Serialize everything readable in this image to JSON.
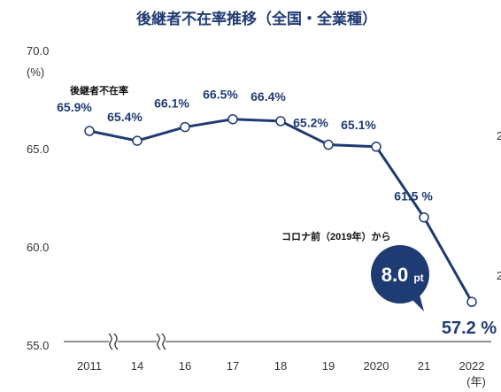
{
  "chart_data": {
    "type": "line",
    "title": "後継者不在率推移（全国・全業種）",
    "series": [
      {
        "name": "後継者不在率",
        "x": [
          "2011",
          "14",
          "16",
          "17",
          "18",
          "19",
          "2020",
          "21",
          "2022"
        ],
        "values": [
          65.9,
          65.4,
          66.1,
          66.5,
          66.4,
          65.2,
          65.1,
          61.5,
          57.2
        ],
        "labels": [
          "65.9%",
          "65.4%",
          "66.1%",
          "66.5%",
          "66.4%",
          "65.2%",
          "65.1%",
          "61.5 %",
          "57.2 %"
        ]
      }
    ],
    "ylim": [
      55.0,
      70.0
    ],
    "yticks": [
      "55.0",
      "60.0",
      "65.0",
      "70.0"
    ],
    "y_unit": "(%)",
    "x_unit": "(年)",
    "axis_break_marks": 2,
    "grid": false,
    "legend": "none",
    "annotation": {
      "text": "コロナ前（2019年）から",
      "value": "8.0",
      "unit": "pt"
    },
    "colors": {
      "line": "#1f3b73",
      "marker_fill": "#ffffff",
      "bubble": "#1f3b73"
    }
  },
  "edge_fragments": [
    "2",
    "2"
  ]
}
